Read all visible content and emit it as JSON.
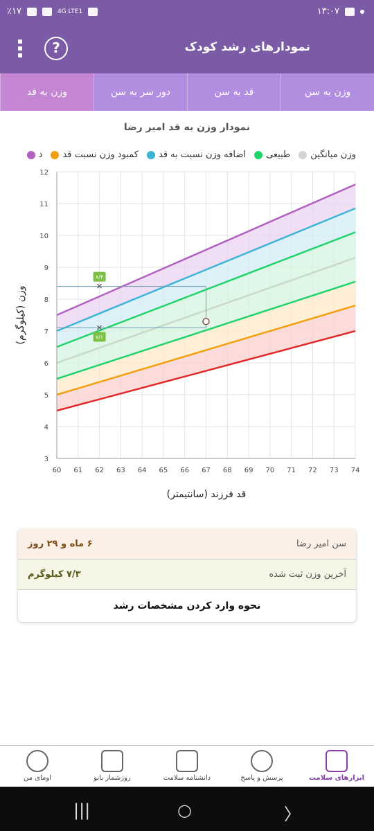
{
  "status": {
    "time": "۱۳:۰۷",
    "battery": "٪۱۷",
    "network": "4G LTE1"
  },
  "appbar": {
    "title": "نمودارهای رشد کودک"
  },
  "tabs": [
    {
      "label": "وزن به سن"
    },
    {
      "label": "قد به سن"
    },
    {
      "label": "دور سر به سن"
    },
    {
      "label": "وزن به قد"
    }
  ],
  "chart": {
    "title": "نمودار وزن به قد امیر رضا"
  },
  "legend": [
    {
      "label": "د",
      "color": "#b061c2"
    },
    {
      "label": "کمبود وزن نسبت قد",
      "color": "#f2a010"
    },
    {
      "label": "اضافه وزن نسبت به قد",
      "color": "#3fb5d6"
    },
    {
      "label": "طبیعی",
      "color": "#22d36b"
    },
    {
      "label": "وزن میانگین",
      "color": "#d4d4d4"
    }
  ],
  "chart_data": {
    "type": "line",
    "xlabel": "قد فرزند (سانتیمتر)",
    "ylabel": "وزن (کیلوگرم)",
    "xlim": [
      60,
      74
    ],
    "ylim": [
      3,
      12
    ],
    "xticks": [
      "60",
      "61",
      "62",
      "63",
      "64",
      "65",
      "66",
      "67",
      "68",
      "69",
      "70",
      "71",
      "72",
      "73",
      "74"
    ],
    "yticks": [
      "3",
      "4",
      "5",
      "6",
      "7",
      "8",
      "9",
      "10",
      "11",
      "12"
    ],
    "series": [
      {
        "color": "#b061c2",
        "x": [
          60,
          74
        ],
        "y": [
          7.5,
          11.6
        ]
      },
      {
        "color": "#3fb5d6",
        "x": [
          60,
          74
        ],
        "y": [
          7.0,
          10.85
        ]
      },
      {
        "color": "#22d36b",
        "x": [
          60,
          74
        ],
        "y": [
          6.5,
          10.1
        ]
      },
      {
        "color": "#c9d8c9",
        "x": [
          60,
          74
        ],
        "y": [
          6.0,
          9.3
        ]
      },
      {
        "color": "#22d36b",
        "x": [
          60,
          74
        ],
        "y": [
          5.5,
          8.55
        ]
      },
      {
        "color": "#f2a010",
        "x": [
          60,
          74
        ],
        "y": [
          5.0,
          7.8
        ]
      },
      {
        "color": "#e02a2a",
        "x": [
          60,
          74
        ],
        "y": [
          4.5,
          7.0
        ]
      }
    ],
    "annotations": [
      {
        "label": "۸/۴",
        "x": 62,
        "y": 8.4
      },
      {
        "label": "۷/۱",
        "x": 62,
        "y": 7.1
      }
    ],
    "point": {
      "x": 67,
      "y": 7.3
    }
  },
  "info": {
    "age_label": "سن امیر رضا",
    "age_value": "۶ ماه و ۲۹ روز",
    "weight_label": "آخرین وزن ثبت شده",
    "weight_value": "۷/۳ کیلوگرم",
    "howto": "نحوه وارد کردن مشخصات رشد"
  },
  "bottomnav": [
    {
      "label": "ابزارهای سلامت",
      "icon": "health-kit-icon"
    },
    {
      "label": "پرسش و پاسخ",
      "icon": "question-icon"
    },
    {
      "label": "دانشنامه سلامت",
      "icon": "encyclopedia-icon"
    },
    {
      "label": "روزشمار بانو",
      "icon": "calendar-icon"
    },
    {
      "label": "اومای من",
      "icon": "profile-icon"
    }
  ]
}
